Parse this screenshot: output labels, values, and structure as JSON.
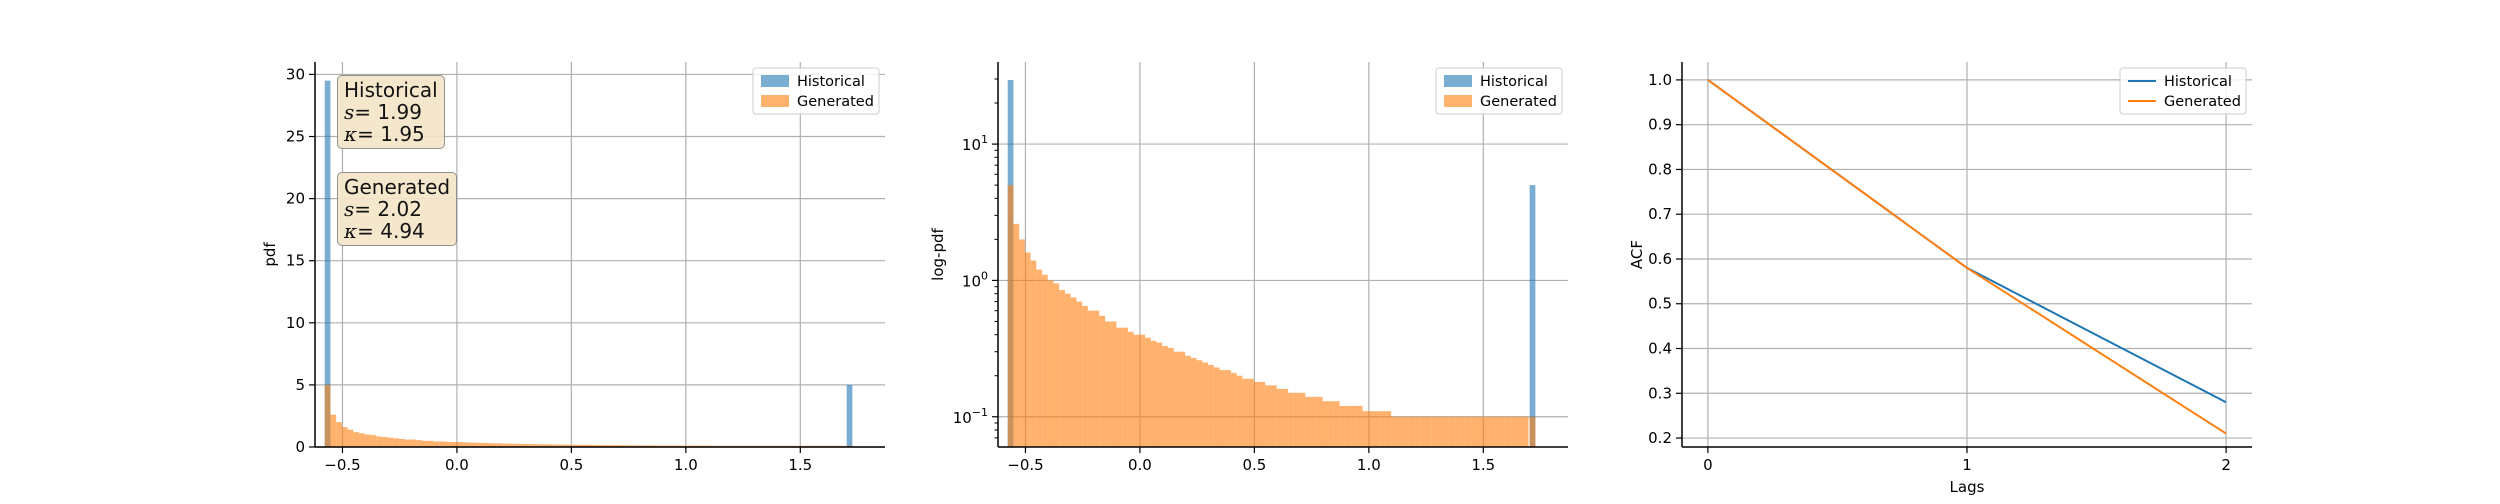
{
  "colors": {
    "historical": "#1f77b4",
    "generated": "#ff7f0e"
  },
  "chart_data": [
    {
      "type": "bar",
      "subtype": "histogram",
      "ylabel": "pdf",
      "xlim": [
        -0.62,
        1.87
      ],
      "ylim": [
        0,
        31
      ],
      "xticks": [
        -0.5,
        0.0,
        0.5,
        1.0,
        1.5
      ],
      "xtick_labels": [
        "−0.5",
        "0.0",
        "0.5",
        "1.0",
        "1.5"
      ],
      "yticks": [
        0,
        5,
        10,
        15,
        20,
        25,
        30
      ],
      "ytick_labels": [
        "0",
        "5",
        "10",
        "15",
        "20",
        "25",
        "30"
      ],
      "grid": true,
      "legend": {
        "position": "upper-right",
        "entries": [
          "Historical",
          "Generated"
        ]
      },
      "annotations": [
        {
          "title": "Historical",
          "s_label": "s",
          "s_value": "= 1.99",
          "k_label": "κ",
          "k_value": "= 1.95"
        },
        {
          "title": "Generated",
          "s_label": "s",
          "s_value": "= 2.02",
          "k_label": "κ",
          "k_value": "= 4.94"
        }
      ],
      "series": [
        {
          "name": "Historical",
          "bins": [
            [
              -0.565,
              29.5
            ],
            [
              1.715,
              5.0
            ]
          ]
        },
        {
          "name": "Generated",
          "bins": [
            [
              -0.565,
              5.0
            ],
            [
              -0.54,
              2.6
            ],
            [
              -0.515,
              2.0
            ],
            [
              -0.49,
              1.6
            ],
            [
              -0.465,
              1.4
            ],
            [
              -0.44,
              1.2
            ],
            [
              -0.415,
              1.1
            ],
            [
              -0.39,
              1.0
            ],
            [
              -0.365,
              0.95
            ],
            [
              -0.34,
              0.85
            ],
            [
              -0.315,
              0.8
            ],
            [
              -0.29,
              0.75
            ],
            [
              -0.265,
              0.7
            ],
            [
              -0.24,
              0.65
            ],
            [
              -0.215,
              0.6
            ],
            [
              -0.19,
              0.6
            ],
            [
              -0.165,
              0.55
            ],
            [
              -0.14,
              0.5
            ],
            [
              -0.115,
              0.5
            ],
            [
              -0.09,
              0.45
            ],
            [
              -0.065,
              0.45
            ],
            [
              -0.04,
              0.42
            ],
            [
              -0.015,
              0.4
            ],
            [
              0.01,
              0.4
            ],
            [
              0.035,
              0.38
            ],
            [
              0.06,
              0.36
            ],
            [
              0.085,
              0.35
            ],
            [
              0.11,
              0.33
            ],
            [
              0.135,
              0.32
            ],
            [
              0.16,
              0.3
            ],
            [
              0.185,
              0.3
            ],
            [
              0.21,
              0.28
            ],
            [
              0.235,
              0.27
            ],
            [
              0.26,
              0.26
            ],
            [
              0.285,
              0.25
            ],
            [
              0.31,
              0.24
            ],
            [
              0.335,
              0.23
            ],
            [
              0.36,
              0.22
            ],
            [
              0.385,
              0.22
            ],
            [
              0.41,
              0.21
            ],
            [
              0.435,
              0.2
            ],
            [
              0.46,
              0.19
            ],
            [
              0.485,
              0.19
            ],
            [
              0.51,
              0.18
            ],
            [
              0.535,
              0.18
            ],
            [
              0.56,
              0.17
            ],
            [
              0.585,
              0.17
            ],
            [
              0.61,
              0.16
            ],
            [
              0.635,
              0.16
            ],
            [
              0.66,
              0.15
            ],
            [
              0.685,
              0.15
            ],
            [
              0.71,
              0.15
            ],
            [
              0.735,
              0.14
            ],
            [
              0.76,
              0.14
            ],
            [
              0.785,
              0.14
            ],
            [
              0.81,
              0.13
            ],
            [
              0.835,
              0.13
            ],
            [
              0.86,
              0.13
            ],
            [
              0.885,
              0.12
            ],
            [
              0.91,
              0.12
            ],
            [
              0.935,
              0.12
            ],
            [
              0.96,
              0.12
            ],
            [
              0.985,
              0.11
            ],
            [
              1.01,
              0.11
            ],
            [
              1.035,
              0.11
            ],
            [
              1.06,
              0.11
            ],
            [
              1.085,
              0.11
            ],
            [
              1.11,
              0.1
            ],
            [
              1.135,
              0.1
            ],
            [
              1.16,
              0.1
            ],
            [
              1.185,
              0.1
            ],
            [
              1.21,
              0.1
            ],
            [
              1.235,
              0.1
            ],
            [
              1.26,
              0.1
            ],
            [
              1.285,
              0.1
            ],
            [
              1.31,
              0.1
            ],
            [
              1.335,
              0.1
            ],
            [
              1.36,
              0.1
            ],
            [
              1.385,
              0.1
            ],
            [
              1.41,
              0.1
            ],
            [
              1.435,
              0.1
            ],
            [
              1.46,
              0.1
            ],
            [
              1.485,
              0.1
            ],
            [
              1.51,
              0.1
            ],
            [
              1.535,
              0.1
            ],
            [
              1.56,
              0.1
            ],
            [
              1.585,
              0.1
            ],
            [
              1.61,
              0.1
            ],
            [
              1.635,
              0.1
            ],
            [
              1.66,
              0.1
            ],
            [
              1.685,
              0.1
            ],
            [
              1.715,
              0.1
            ]
          ]
        }
      ]
    },
    {
      "type": "bar",
      "subtype": "histogram",
      "ylabel": "log-pdf",
      "yscale": "log",
      "xlim": [
        -0.62,
        1.87
      ],
      "ylim": [
        0.06,
        40
      ],
      "xticks": [
        -0.5,
        0.0,
        0.5,
        1.0,
        1.5
      ],
      "xtick_labels": [
        "−0.5",
        "0.0",
        "0.5",
        "1.0",
        "1.5"
      ],
      "yticks": [
        0.1,
        1,
        10
      ],
      "ytick_labels": [
        "10⁻¹",
        "10⁰",
        "10¹"
      ],
      "grid": true,
      "legend": {
        "position": "upper-right",
        "entries": [
          "Historical",
          "Generated"
        ]
      },
      "series": [
        {
          "name": "Historical",
          "bins": [
            [
              -0.565,
              29.5
            ],
            [
              1.715,
              5.0
            ]
          ]
        },
        {
          "name": "Generated",
          "bins": [
            [
              -0.565,
              5.0
            ],
            [
              -0.54,
              2.6
            ],
            [
              -0.515,
              2.0
            ],
            [
              -0.49,
              1.6
            ],
            [
              -0.465,
              1.4
            ],
            [
              -0.44,
              1.2
            ],
            [
              -0.415,
              1.1
            ],
            [
              -0.39,
              1.0
            ],
            [
              -0.365,
              0.95
            ],
            [
              -0.34,
              0.85
            ],
            [
              -0.315,
              0.8
            ],
            [
              -0.29,
              0.75
            ],
            [
              -0.265,
              0.7
            ],
            [
              -0.24,
              0.65
            ],
            [
              -0.215,
              0.6
            ],
            [
              -0.19,
              0.6
            ],
            [
              -0.165,
              0.55
            ],
            [
              -0.14,
              0.5
            ],
            [
              -0.115,
              0.5
            ],
            [
              -0.09,
              0.45
            ],
            [
              -0.065,
              0.45
            ],
            [
              -0.04,
              0.42
            ],
            [
              -0.015,
              0.4
            ],
            [
              0.01,
              0.4
            ],
            [
              0.035,
              0.38
            ],
            [
              0.06,
              0.36
            ],
            [
              0.085,
              0.35
            ],
            [
              0.11,
              0.33
            ],
            [
              0.135,
              0.32
            ],
            [
              0.16,
              0.3
            ],
            [
              0.185,
              0.3
            ],
            [
              0.21,
              0.28
            ],
            [
              0.235,
              0.27
            ],
            [
              0.26,
              0.26
            ],
            [
              0.285,
              0.25
            ],
            [
              0.31,
              0.24
            ],
            [
              0.335,
              0.23
            ],
            [
              0.36,
              0.22
            ],
            [
              0.385,
              0.22
            ],
            [
              0.41,
              0.21
            ],
            [
              0.435,
              0.2
            ],
            [
              0.46,
              0.19
            ],
            [
              0.485,
              0.19
            ],
            [
              0.51,
              0.18
            ],
            [
              0.535,
              0.18
            ],
            [
              0.56,
              0.17
            ],
            [
              0.585,
              0.17
            ],
            [
              0.61,
              0.16
            ],
            [
              0.635,
              0.16
            ],
            [
              0.66,
              0.15
            ],
            [
              0.685,
              0.15
            ],
            [
              0.71,
              0.15
            ],
            [
              0.735,
              0.14
            ],
            [
              0.76,
              0.14
            ],
            [
              0.785,
              0.14
            ],
            [
              0.81,
              0.13
            ],
            [
              0.835,
              0.13
            ],
            [
              0.86,
              0.13
            ],
            [
              0.885,
              0.12
            ],
            [
              0.91,
              0.12
            ],
            [
              0.935,
              0.12
            ],
            [
              0.96,
              0.12
            ],
            [
              0.985,
              0.11
            ],
            [
              1.01,
              0.11
            ],
            [
              1.035,
              0.11
            ],
            [
              1.06,
              0.11
            ],
            [
              1.085,
              0.11
            ],
            [
              1.11,
              0.1
            ],
            [
              1.135,
              0.1
            ],
            [
              1.16,
              0.1
            ],
            [
              1.185,
              0.1
            ],
            [
              1.21,
              0.1
            ],
            [
              1.235,
              0.1
            ],
            [
              1.26,
              0.1
            ],
            [
              1.285,
              0.1
            ],
            [
              1.31,
              0.1
            ],
            [
              1.335,
              0.1
            ],
            [
              1.36,
              0.1
            ],
            [
              1.385,
              0.1
            ],
            [
              1.41,
              0.1
            ],
            [
              1.435,
              0.1
            ],
            [
              1.46,
              0.1
            ],
            [
              1.485,
              0.1
            ],
            [
              1.51,
              0.1
            ],
            [
              1.535,
              0.1
            ],
            [
              1.56,
              0.1
            ],
            [
              1.585,
              0.1
            ],
            [
              1.61,
              0.1
            ],
            [
              1.635,
              0.1
            ],
            [
              1.66,
              0.1
            ],
            [
              1.685,
              0.1
            ],
            [
              1.715,
              0.1
            ]
          ]
        }
      ]
    },
    {
      "type": "line",
      "xlabel": "Lags",
      "ylabel": "ACF",
      "xlim": [
        -0.1,
        2.1
      ],
      "ylim": [
        0.18,
        1.04
      ],
      "xticks": [
        0,
        1,
        2
      ],
      "xtick_labels": [
        "0",
        "1",
        "2"
      ],
      "yticks": [
        0.2,
        0.3,
        0.4,
        0.5,
        0.6,
        0.7,
        0.8,
        0.9,
        1.0
      ],
      "ytick_labels": [
        "0.2",
        "0.3",
        "0.4",
        "0.5",
        "0.6",
        "0.7",
        "0.8",
        "0.9",
        "1.0"
      ],
      "grid": true,
      "legend": {
        "position": "upper-right",
        "entries": [
          "Historical",
          "Generated"
        ]
      },
      "x": [
        0,
        1,
        2
      ],
      "series": [
        {
          "name": "Historical",
          "values": [
            1.0,
            0.58,
            0.28
          ]
        },
        {
          "name": "Generated",
          "values": [
            1.0,
            0.58,
            0.21
          ]
        }
      ]
    }
  ]
}
